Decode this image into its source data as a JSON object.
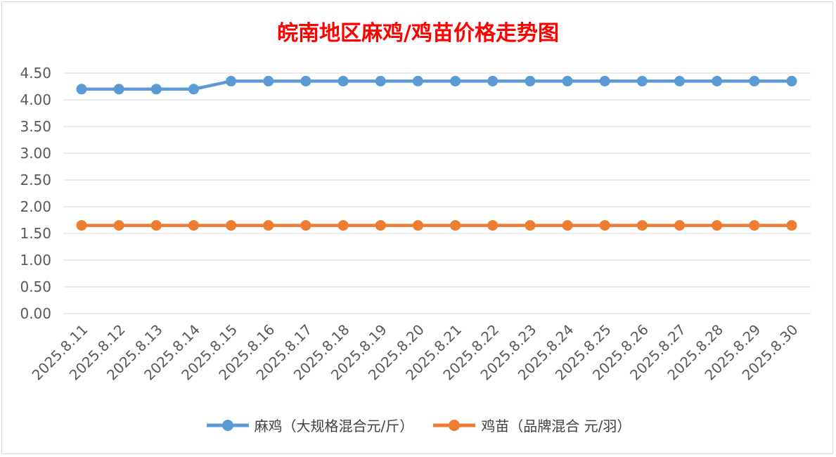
{
  "chart_data": {
    "type": "line",
    "title": "皖南地区麻鸡/鸡苗价格走势图",
    "xlabel": "",
    "ylabel": "",
    "categories": [
      "2025.8.11",
      "2025.8.12",
      "2025.8.13",
      "2025.8.14",
      "2025.8.15",
      "2025.8.16",
      "2025.8.17",
      "2025.8.18",
      "2025.8.19",
      "2025.8.20",
      "2025.8.21",
      "2025.8.22",
      "2025.8.23",
      "2025.8.24",
      "2025.8.25",
      "2025.8.26",
      "2025.8.27",
      "2025.8.28",
      "2025.8.29",
      "2025.8.30"
    ],
    "ylim": [
      0,
      4.5
    ],
    "yticks": [
      "0.00",
      "0.50",
      "1.00",
      "1.50",
      "2.00",
      "2.50",
      "3.00",
      "3.50",
      "4.00",
      "4.50"
    ],
    "grid": true,
    "legend_position": "bottom",
    "series": [
      {
        "name": "麻鸡（大规格混合元/斤）",
        "color": "#5b9bd5",
        "values": [
          4.2,
          4.2,
          4.2,
          4.2,
          4.35,
          4.35,
          4.35,
          4.35,
          4.35,
          4.35,
          4.35,
          4.35,
          4.35,
          4.35,
          4.35,
          4.35,
          4.35,
          4.35,
          4.35,
          4.35
        ]
      },
      {
        "name": "鸡苗（品牌混合 元/羽）",
        "color": "#ed7d31",
        "values": [
          1.65,
          1.65,
          1.65,
          1.65,
          1.65,
          1.65,
          1.65,
          1.65,
          1.65,
          1.65,
          1.65,
          1.65,
          1.65,
          1.65,
          1.65,
          1.65,
          1.65,
          1.65,
          1.65,
          1.65
        ]
      }
    ]
  }
}
